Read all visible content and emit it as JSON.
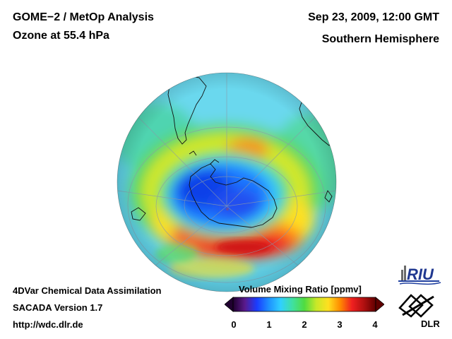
{
  "header": {
    "title_line1": "GOME−2 / MetOp Analysis",
    "title_line2": "Ozone at 55.4 hPa",
    "date": "Sep 23, 2009, 12:00 GMT",
    "region": "Southern Hemisphere"
  },
  "footer": {
    "line1": "4DVar Chemical Data Assimilation",
    "line2": "SACADA Version 1.7",
    "line3": "http://wdc.dlr.de"
  },
  "colorbar": {
    "title": "Volume Mixing Ratio [ppmv]",
    "range": [
      0,
      4
    ],
    "ticks": [
      "0",
      "1",
      "2",
      "3",
      "4"
    ],
    "colors": [
      "#200030",
      "#5a1a8c",
      "#1a3cff",
      "#1e90ff",
      "#30d0ff",
      "#40e0a0",
      "#50dc40",
      "#c8e828",
      "#ffe020",
      "#ff8c00",
      "#f02020",
      "#b01010",
      "#600000"
    ]
  },
  "logos": {
    "riu": "RIU",
    "dlr": "DLR"
  },
  "map": {
    "projection": "orthographic",
    "hemisphere": "Southern Hemisphere"
  }
}
